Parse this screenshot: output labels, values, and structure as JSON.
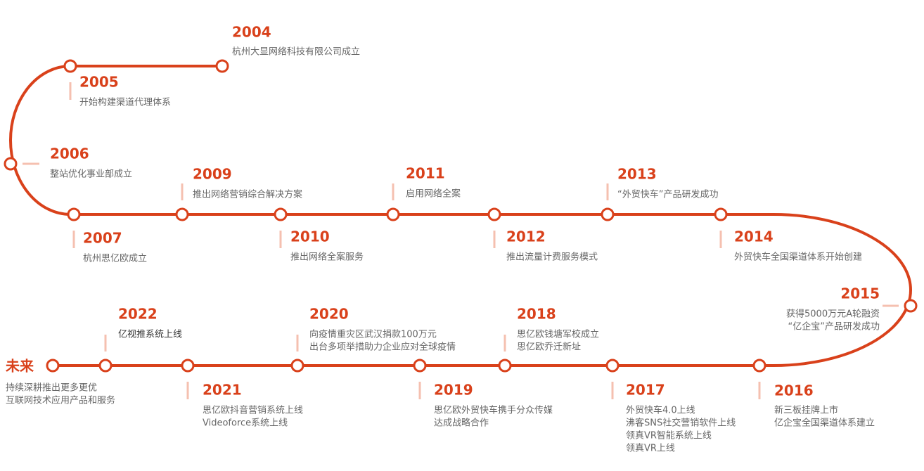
{
  "milestones": [
    {
      "year": "2004",
      "lines": [
        "杭州大显网络科技有限公司成立"
      ]
    },
    {
      "year": "2005",
      "lines": [
        "开始构建渠道代理体系"
      ]
    },
    {
      "year": "2006",
      "lines": [
        "整站优化事业部成立"
      ]
    },
    {
      "year": "2007",
      "lines": [
        "杭州思亿欧成立"
      ]
    },
    {
      "year": "2009",
      "lines": [
        "推出网络营销综合解决方案"
      ]
    },
    {
      "year": "2010",
      "lines": [
        "推出网络全案服务"
      ]
    },
    {
      "year": "2011",
      "lines": [
        "启用网络全案"
      ]
    },
    {
      "year": "2012",
      "lines": [
        "推出流量计费服务模式"
      ]
    },
    {
      "year": "2013",
      "lines": [
        "“外贸快车”产品研发成功"
      ]
    },
    {
      "year": "2014",
      "lines": [
        "外贸快车全国渠道体系开始创建"
      ]
    },
    {
      "year": "2015",
      "lines": [
        "获得5000万元A轮融资",
        "“亿企宝”产品研发成功"
      ]
    },
    {
      "year": "2016",
      "lines": [
        "新三板挂牌上市",
        "亿企宝全国渠道体系建立"
      ]
    },
    {
      "year": "2017",
      "lines": [
        "外贸快车4.0上线",
        "沸客SNS社交营销软件上线",
        "领真VR智能系统上线",
        "领真VR上线"
      ]
    },
    {
      "year": "2018",
      "lines": [
        "思亿欧钱塘军校成立",
        "思亿欧乔迁新址"
      ]
    },
    {
      "year": "2019",
      "lines": [
        "思亿欧外贸快车携手分众传媒",
        "达成战略合作"
      ]
    },
    {
      "year": "2020",
      "lines": [
        "向疫情重灾区武汉捐款100万元",
        "出台多项举措助力企业应对全球疫情"
      ]
    },
    {
      "year": "2021",
      "lines": [
        "思亿欧抖音营销系统上线",
        "Videoforce系统上线"
      ]
    },
    {
      "year": "2022",
      "lines": [
        "亿视推系统上线"
      ]
    },
    {
      "year": "未来",
      "lines": [
        "持续深耕推出更多更优",
        "互联网技术应用产品和服务"
      ]
    }
  ]
}
